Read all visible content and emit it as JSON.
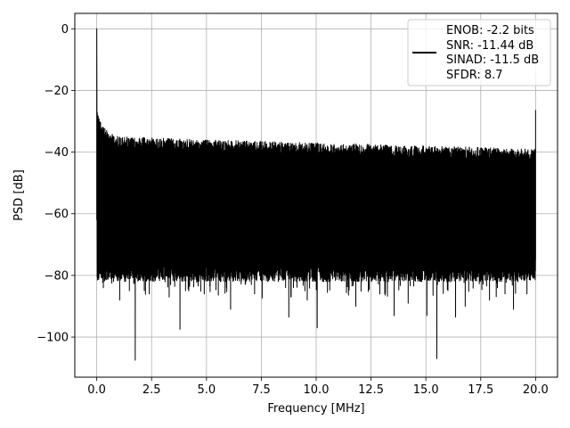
{
  "chart_data": {
    "type": "line",
    "xlabel": "Frequency [MHz]",
    "ylabel": "PSD [dB]",
    "xlim": [
      -1.0,
      21.0
    ],
    "ylim": [
      -113.0,
      5.0
    ],
    "x_ticks": [
      0.0,
      2.5,
      5.0,
      7.5,
      10.0,
      12.5,
      15.0,
      17.5,
      20.0
    ],
    "x_tick_labels": [
      "0.0",
      "2.5",
      "5.0",
      "7.5",
      "10.0",
      "12.5",
      "15.0",
      "17.5",
      "20.0"
    ],
    "y_ticks": [
      0,
      -20,
      -40,
      -60,
      -80,
      -100
    ],
    "y_tick_labels": [
      "0",
      "−20",
      "−40",
      "−60",
      "−80",
      "−100"
    ],
    "grid": true,
    "legend_position": "top-right",
    "series_color": "#000000",
    "legend": {
      "lines": [
        "ENOB: -2.2 bits",
        "SNR: -11.44 dB",
        "SINAD: -11.5 dB",
        "SFDR: 8.7"
      ]
    },
    "series": [
      {
        "x_range": [
          0.0,
          20.0
        ],
        "peaks": [
          {
            "x": 0.0,
            "y": 0.0
          },
          {
            "x": 20.0,
            "y": -26.5
          }
        ],
        "noise_top": [
          {
            "x": 0.05,
            "y": -27.0
          },
          {
            "x": 0.3,
            "y": -32.0
          },
          {
            "x": 1.0,
            "y": -35.0
          },
          {
            "x": 5.0,
            "y": -36.0
          },
          {
            "x": 10.0,
            "y": -37.0
          },
          {
            "x": 15.0,
            "y": -38.0
          },
          {
            "x": 20.0,
            "y": -39.0
          }
        ],
        "noise_floor_band": [
          -82.0,
          -76.0
        ],
        "dips": [
          {
            "x": 1.75,
            "y": -107.5
          },
          {
            "x": 15.5,
            "y": -107.0
          },
          {
            "x": 3.8,
            "y": -97.5
          },
          {
            "x": 10.05,
            "y": -97.0
          },
          {
            "x": 1.05,
            "y": -88.0
          },
          {
            "x": 6.1,
            "y": -91.0
          },
          {
            "x": 8.75,
            "y": -93.5
          },
          {
            "x": 13.55,
            "y": -93.0
          },
          {
            "x": 16.35,
            "y": -93.5
          },
          {
            "x": 19.0,
            "y": -91.0
          },
          {
            "x": 0.3,
            "y": -84.0
          },
          {
            "x": 2.4,
            "y": -86.0
          },
          {
            "x": 3.3,
            "y": -87.0
          },
          {
            "x": 4.2,
            "y": -85.0
          },
          {
            "x": 4.9,
            "y": -86.0
          },
          {
            "x": 7.2,
            "y": -86.0
          },
          {
            "x": 9.6,
            "y": -88.0
          },
          {
            "x": 11.8,
            "y": -90.0
          },
          {
            "x": 12.9,
            "y": -86.0
          },
          {
            "x": 14.2,
            "y": -89.0
          },
          {
            "x": 15.05,
            "y": -93.0
          },
          {
            "x": 16.8,
            "y": -90.0
          },
          {
            "x": 17.9,
            "y": -88.0
          },
          {
            "x": 18.6,
            "y": -86.0
          },
          {
            "x": 19.6,
            "y": -86.0
          }
        ]
      }
    ]
  }
}
